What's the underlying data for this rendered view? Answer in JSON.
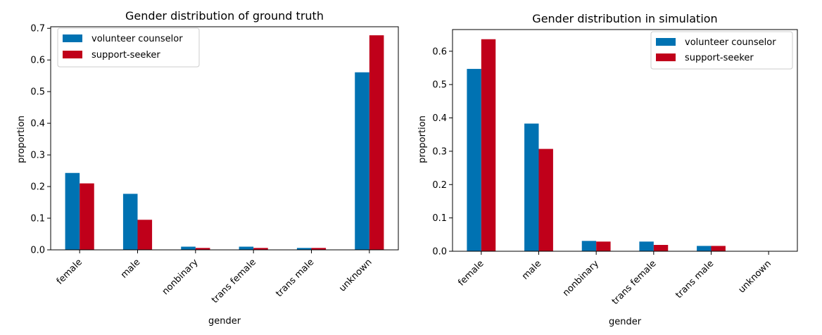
{
  "colors": {
    "volunteer": "#0072b2",
    "seeker": "#c0001a"
  },
  "chart_data": [
    {
      "type": "bar",
      "title": "Gender distribution of ground truth",
      "xlabel": "gender",
      "ylabel": "proportion",
      "categories": [
        "female",
        "male",
        "nonbinary",
        "trans female",
        "trans male",
        "unknown"
      ],
      "yticks": [
        "0.0",
        "0.1",
        "0.2",
        "0.3",
        "0.4",
        "0.5",
        "0.6",
        "0.7"
      ],
      "ylim": [
        0,
        0.705
      ],
      "legend_position": "top-left",
      "series": [
        {
          "name": "volunteer counselor",
          "values": [
            0.243,
            0.177,
            0.01,
            0.01,
            0.006,
            0.561
          ]
        },
        {
          "name": "support-seeker",
          "values": [
            0.21,
            0.095,
            0.006,
            0.006,
            0.006,
            0.678
          ]
        }
      ]
    },
    {
      "type": "bar",
      "title": "Gender distribution in simulation",
      "xlabel": "gender",
      "ylabel": "proportion",
      "categories": [
        "female",
        "male",
        "nonbinary",
        "trans female",
        "trans male",
        "unknown"
      ],
      "yticks": [
        "0.0",
        "0.1",
        "0.2",
        "0.3",
        "0.4",
        "0.5",
        "0.6"
      ],
      "ylim": [
        0,
        0.665
      ],
      "legend_position": "top-right",
      "series": [
        {
          "name": "volunteer counselor",
          "values": [
            0.547,
            0.383,
            0.031,
            0.029,
            0.016,
            0.0
          ]
        },
        {
          "name": "support-seeker",
          "values": [
            0.636,
            0.307,
            0.029,
            0.019,
            0.016,
            0.0
          ]
        }
      ]
    }
  ]
}
